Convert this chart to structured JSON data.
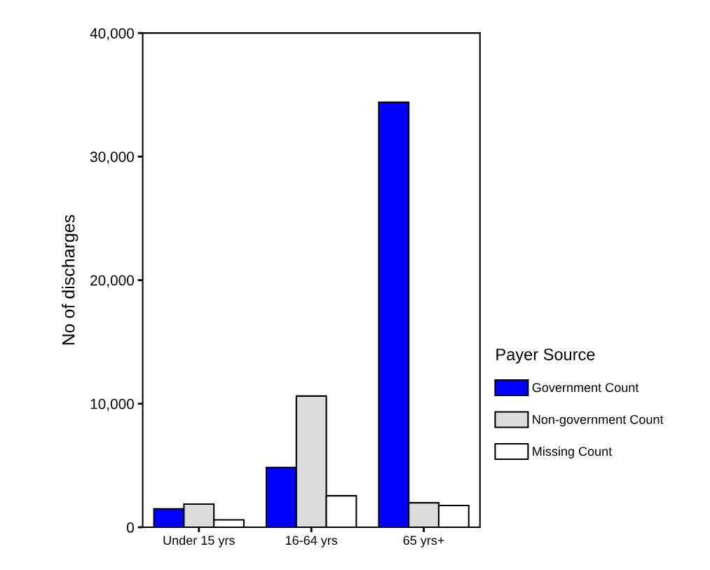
{
  "chart_data": {
    "type": "bar",
    "ylabel": "No of discharges",
    "legend_title": "Payer Source",
    "legend": "right",
    "categories": [
      "Under 15 yrs",
      "16-64 yrs",
      "65 yrs+"
    ],
    "series": [
      {
        "name": "Government Count",
        "color": "#0000ff",
        "values": [
          1490,
          4830,
          34400
        ]
      },
      {
        "name": "Non-government Count",
        "color": "#dcdcdc",
        "values": [
          1870,
          10620,
          1980
        ]
      },
      {
        "name": "Missing Count",
        "color": "#ffffff",
        "values": [
          600,
          2550,
          1760
        ]
      }
    ],
    "ylim": [
      0,
      40000
    ],
    "yticks": [
      {
        "value": 0,
        "label": "0"
      },
      {
        "value": 10000,
        "label": "10,000"
      },
      {
        "value": 20000,
        "label": "20,000"
      },
      {
        "value": 30000,
        "label": "30,000"
      },
      {
        "value": 40000,
        "label": "40,000"
      }
    ],
    "grid": false
  }
}
